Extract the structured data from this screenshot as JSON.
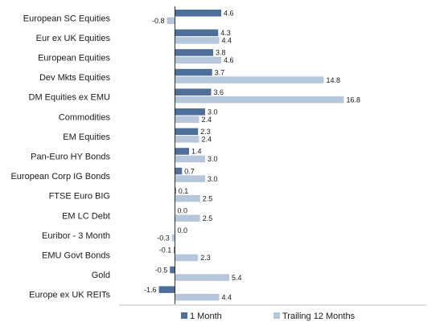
{
  "chart_data": {
    "type": "bar",
    "orientation": "horizontal",
    "categories": [
      "European SC Equities",
      "Eur ex UK Equities",
      "European Equities",
      "Dev Mkts Equities",
      "DM Equities ex EMU",
      "Commodities",
      "EM Equities",
      "Pan-Euro HY Bonds",
      "European Corp IG Bonds",
      "FTSE Euro BIG",
      "EM LC Debt",
      "Euribor - 3 Month",
      "EMU Govt Bonds",
      "Gold",
      "Europe ex UK REITs"
    ],
    "series": [
      {
        "name": "1 Month",
        "color": "#4d6f99",
        "values": [
          4.6,
          4.3,
          3.8,
          3.7,
          3.6,
          3.0,
          2.3,
          1.4,
          0.7,
          0.1,
          0.0,
          0.0,
          -0.1,
          -0.5,
          -1.6
        ],
        "labels": [
          "4.6",
          "4.3",
          "3.8",
          "3.7",
          "3.6",
          "3.0",
          "2.3",
          "1.4",
          "0.7",
          "0.1",
          "0.0",
          "0.0",
          "-0.1",
          "-0.5",
          "-1.6"
        ]
      },
      {
        "name": "Trailing 12 Months",
        "color": "#b6c7db",
        "values": [
          -0.8,
          4.4,
          4.6,
          14.8,
          16.8,
          2.4,
          2.4,
          3.0,
          3.0,
          2.5,
          2.5,
          -0.3,
          2.3,
          5.4,
          4.4
        ],
        "labels": [
          "-0.8",
          "4.4",
          "4.6",
          "14.8",
          "16.8",
          "2.4",
          "2.4",
          "3.0",
          "3.0",
          "2.5",
          "2.5",
          "-0.3",
          "2.3",
          "5.4",
          "4.4"
        ]
      }
    ],
    "xlim": [
      -4,
      17.5
    ],
    "grid": false,
    "legend_position": "bottom"
  }
}
